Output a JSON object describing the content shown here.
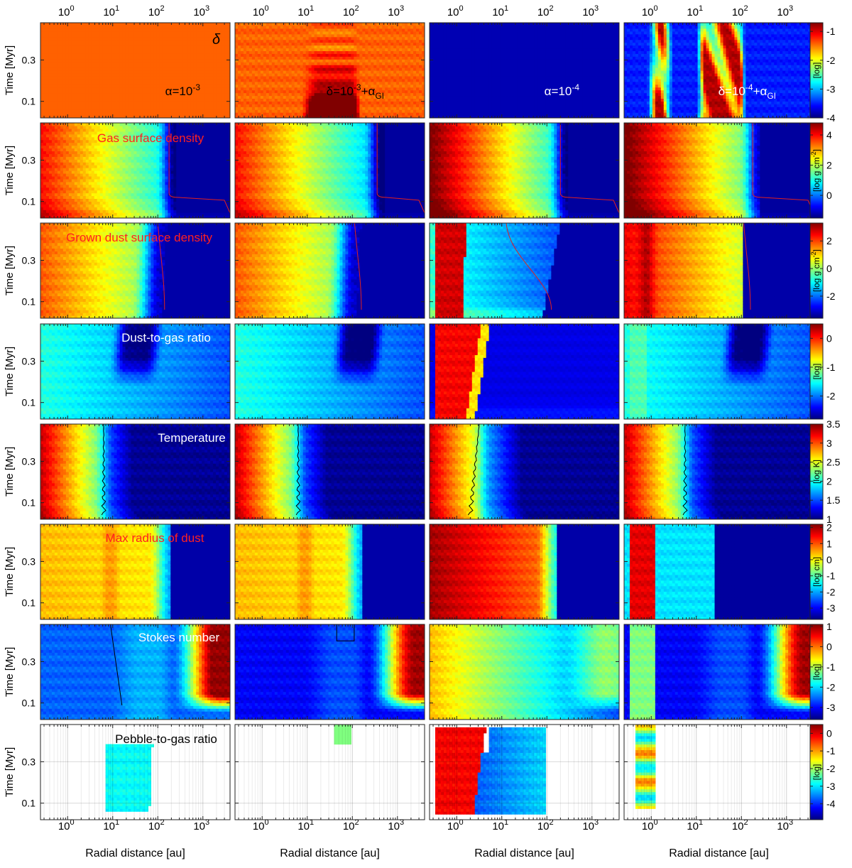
{
  "chart_data": {
    "type": "heatmap",
    "layout": "8 rows x 4 columns grid of radius-time heatmaps",
    "x_axis": {
      "label": "Radial distance [au]",
      "scale": "log",
      "range": [
        0.25,
        4000
      ],
      "tick_values": [
        1,
        10,
        100,
        1000
      ],
      "tick_exponents": [
        "0",
        "1",
        "2",
        "3"
      ],
      "tick_base": "10"
    },
    "y_axis": {
      "label": "Time [Myr]",
      "range": [
        0.02,
        0.48
      ],
      "ticks": [
        0.1,
        0.3
      ],
      "tick_labels": [
        "0.1",
        "0.3"
      ]
    },
    "colormap": "jet",
    "columns": [
      {
        "name": "alpha=1e-3",
        "label_parts": [
          "α=10",
          "-3",
          ""
        ],
        "label_color": "#000000"
      },
      {
        "name": "delta=1e-3+alpha_GI",
        "label_parts": [
          "δ=10",
          "-3",
          "+α",
          "GI"
        ],
        "label_color": "#000000"
      },
      {
        "name": "alpha=1e-4",
        "label_parts": [
          "α=10",
          "-4",
          ""
        ],
        "label_color": "#ffffff"
      },
      {
        "name": "delta=1e-4+alpha_GI",
        "label_parts": [
          "δ=10",
          "-4",
          "+α",
          "GI"
        ],
        "label_color": "#ffffff"
      }
    ],
    "rows": [
      {
        "quantity": "δ",
        "title": "",
        "title_color": "#000000",
        "symbol": "δ",
        "colorbar": {
          "unit": "[log]",
          "ticks": [
            "-1",
            "-2",
            "-3",
            "-4"
          ],
          "tick_values": [
            -1,
            -2,
            -3,
            -4
          ],
          "range": [
            -4,
            -0.7
          ]
        }
      },
      {
        "quantity": "Gas surface density",
        "title": "Gas surface density",
        "title_color": "#ff2020",
        "colorbar": {
          "unit": "[log g cm^-2]",
          "unit_parts": [
            "[log g cm",
            "-2",
            "]"
          ],
          "ticks": [
            "4",
            "2",
            "0"
          ],
          "tick_values": [
            4,
            2,
            0
          ],
          "range": [
            -1.5,
            4.8
          ]
        }
      },
      {
        "quantity": "Grown dust surface density",
        "title": "Grown dust surface density",
        "title_color": "#ff2020",
        "colorbar": {
          "unit": "[log g cm^-2]",
          "unit_parts": [
            "[log g cm",
            "-2",
            "]"
          ],
          "ticks": [
            "2",
            "0",
            "-2"
          ],
          "tick_values": [
            2,
            0,
            -2
          ],
          "range": [
            -3.6,
            3.3
          ]
        }
      },
      {
        "quantity": "Dust-to-gas ratio",
        "title": "Dust-to-gas ratio",
        "title_color": "#ffffff",
        "colorbar": {
          "unit": "[log]",
          "ticks": [
            "0",
            "-1",
            "-2"
          ],
          "tick_values": [
            0,
            -1,
            -2
          ],
          "range": [
            -2.8,
            0.5
          ]
        }
      },
      {
        "quantity": "Temperature",
        "title": "Temperature",
        "title_color": "#ffffff",
        "colorbar": {
          "unit": "[log K]",
          "ticks": [
            "3.5",
            "3",
            "2.5",
            "2",
            "1.5",
            "1"
          ],
          "tick_values": [
            3.5,
            3,
            2.5,
            2,
            1.5,
            1
          ],
          "range": [
            1,
            3.5
          ]
        }
      },
      {
        "quantity": "Max radius of dust",
        "title": "Max radius of dust",
        "title_color": "#ff2020",
        "colorbar": {
          "unit": "[log cm]",
          "ticks": [
            "2",
            "1",
            "0",
            "-1",
            "-2",
            "-3"
          ],
          "tick_values": [
            2,
            1,
            0,
            -1,
            -2,
            -3
          ],
          "range": [
            -3.7,
            2.2
          ]
        }
      },
      {
        "quantity": "Stokes number",
        "title": "Stokes number",
        "title_color": "#ffffff",
        "colorbar": {
          "unit": "[log]",
          "ticks": [
            "1",
            "0",
            "-1",
            "-2",
            "-3"
          ],
          "tick_values": [
            1,
            0,
            -1,
            -2,
            -3
          ],
          "range": [
            -3.6,
            1.1
          ]
        }
      },
      {
        "quantity": "Pebble-to-gas ratio",
        "title": "Pebble-to-gas ratio",
        "title_color": "#000000",
        "colorbar": {
          "unit": "[log]",
          "ticks": [
            "0",
            "-1",
            "-2",
            "-3",
            "-4"
          ],
          "tick_values": [
            0,
            -1,
            -2,
            -3,
            -4
          ],
          "range": [
            -4.9,
            0.5
          ]
        }
      }
    ]
  }
}
